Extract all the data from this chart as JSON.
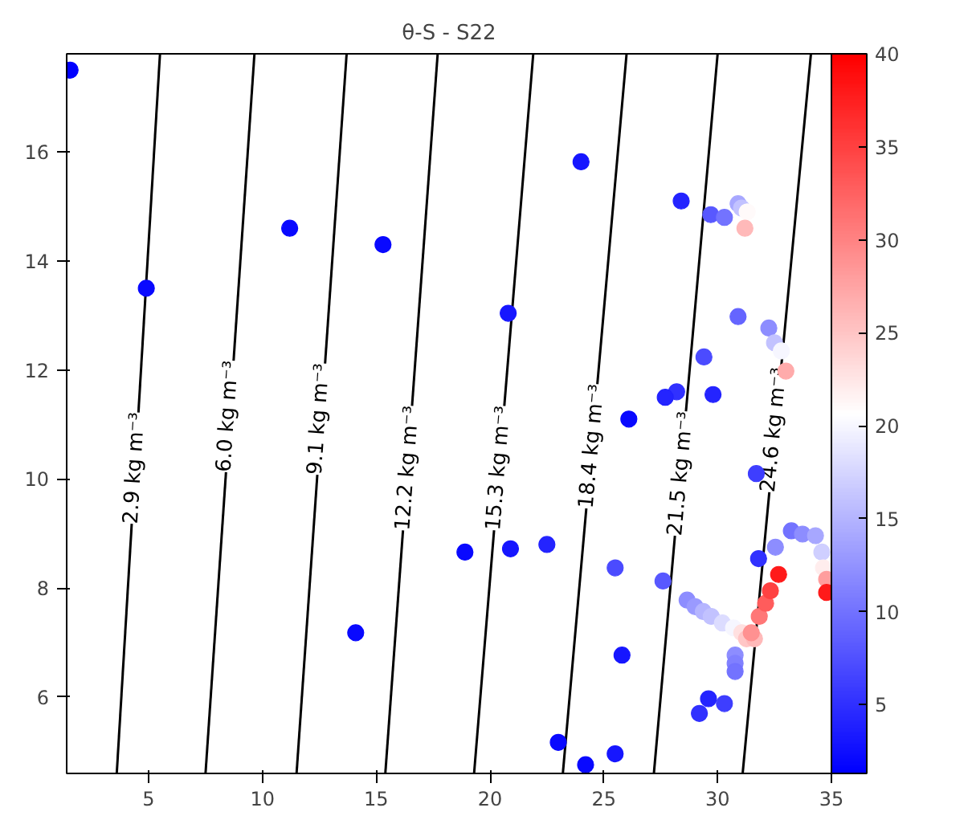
{
  "chart_data": {
    "type": "scatter",
    "title": "θ-S - S22",
    "xlim": [
      1.4,
      35
    ],
    "ylim": [
      4.6,
      17.8
    ],
    "xticks": [
      5,
      10,
      15,
      20,
      25,
      30,
      35
    ],
    "yticks": [
      6,
      8,
      10,
      12,
      14,
      16
    ],
    "clim": [
      1.3,
      40
    ],
    "cticks": [
      5,
      10,
      15,
      20,
      25,
      30,
      35,
      40
    ],
    "grid": false,
    "series": [
      {
        "type": "line",
        "marker": "none",
        "color": "#000000",
        "x": [
          3.6,
          5.5
        ],
        "values": [
          4.6,
          17.8
        ]
      },
      {
        "type": "line",
        "marker": "none",
        "color": "#000000",
        "x": [
          7.5,
          9.65
        ],
        "values": [
          4.6,
          17.8
        ]
      },
      {
        "type": "line",
        "marker": "none",
        "color": "#000000",
        "x": [
          11.5,
          13.7
        ],
        "values": [
          4.6,
          17.8
        ]
      },
      {
        "type": "line",
        "marker": "none",
        "color": "#000000",
        "x": [
          15.4,
          17.7
        ],
        "values": [
          4.6,
          17.8
        ]
      },
      {
        "type": "line",
        "marker": "none",
        "color": "#000000",
        "x": [
          19.3,
          21.9
        ],
        "values": [
          4.6,
          17.8
        ]
      },
      {
        "type": "line",
        "marker": "none",
        "color": "#000000",
        "x": [
          23.2,
          26.0
        ],
        "values": [
          4.6,
          17.8
        ]
      },
      {
        "type": "line",
        "marker": "none",
        "color": "#000000",
        "x": [
          27.2,
          30.0
        ],
        "values": [
          4.6,
          17.8
        ]
      },
      {
        "type": "line",
        "marker": "none",
        "color": "#000000",
        "x": [
          31.1,
          34.1
        ],
        "values": [
          4.6,
          17.8
        ]
      },
      {
        "marker": "circle",
        "x": [
          1.55,
          4.9,
          11.2,
          15.3,
          20.8,
          24.0,
          28.4,
          29.7,
          30.3,
          30.9,
          31.05,
          31.3,
          31.2,
          30.9,
          32.25,
          32.5,
          32.8,
          33.0,
          29.4,
          28.2,
          27.7,
          29.8,
          26.1,
          31.7,
          18.9,
          20.9,
          22.5,
          25.5,
          27.6,
          31.8,
          25.8,
          23.0,
          24.2,
          25.5,
          29.6,
          29.2,
          30.3,
          14.1,
          28.66,
          29.01,
          29.37,
          29.72,
          30.21,
          30.7,
          31.06,
          31.27,
          31.62,
          30.77,
          30.77,
          30.77,
          31.48,
          31.83,
          32.11,
          32.32,
          32.68,
          32.54,
          33.24,
          33.73,
          34.3,
          34.58,
          34.65,
          34.79,
          34.79
        ],
        "values": [
          17.5,
          13.5,
          14.6,
          14.3,
          13.04,
          15.82,
          15.1,
          14.85,
          14.8,
          15.05,
          14.97,
          14.9,
          14.6,
          12.98,
          12.77,
          12.5,
          12.35,
          11.98,
          12.24,
          11.6,
          11.5,
          11.55,
          11.1,
          10.1,
          8.66,
          8.72,
          8.8,
          8.37,
          8.13,
          8.54,
          6.77,
          5.17,
          4.76,
          4.96,
          5.97,
          5.7,
          5.88,
          7.18,
          7.78,
          7.66,
          7.57,
          7.48,
          7.36,
          7.27,
          7.18,
          7.07,
          7.07,
          6.77,
          6.62,
          6.47,
          7.18,
          7.48,
          7.72,
          7.95,
          8.25,
          8.75,
          9.05,
          8.99,
          8.96,
          8.66,
          8.37,
          8.16,
          7.92
        ],
        "colors": [
          "#0000ff",
          "#0909ff",
          "#0909ff",
          "#0909ff",
          "#1616ff",
          "#1616ff",
          "#2424ff",
          "#5858ff",
          "#7373ff",
          "#a7a7ff",
          "#c2c2ff",
          "#fffafa",
          "#ffb9b9",
          "#6565ff",
          "#8d8dff",
          "#c2c2ff",
          "#f6f6ff",
          "#ffabab",
          "#4b4bff",
          "#3131ff",
          "#2424ff",
          "#2424ff",
          "#0909ff",
          "#3e3eff",
          "#0909ff",
          "#1616ff",
          "#2424ff",
          "#4b4bff",
          "#5858ff",
          "#3131ff",
          "#1616ff",
          "#0909ff",
          "#0909ff",
          "#1616ff",
          "#2424ff",
          "#3131ff",
          "#3e3eff",
          "#0909ff",
          "#8d8dff",
          "#9a9aff",
          "#b5b5ff",
          "#c2c2ff",
          "#dcdcff",
          "#f6f6ff",
          "#ffe0e0",
          "#ffc6c6",
          "#ffb9b9",
          "#8d8dff",
          "#8080ff",
          "#7373ff",
          "#ff9191",
          "#ff7777",
          "#ff5c5c",
          "#ff4242",
          "#ff1a1a",
          "#8d8dff",
          "#7373ff",
          "#8d8dff",
          "#a7a7ff",
          "#cfcfff",
          "#ffeded",
          "#ff9e9e",
          "#ff1a1a"
        ],
        "cvalues": [
          1.3,
          2,
          2,
          2,
          3,
          3,
          4,
          8,
          10,
          14,
          16,
          21,
          26,
          9,
          12,
          16,
          20,
          27,
          7,
          5,
          4,
          4,
          2,
          6,
          2,
          3,
          4,
          7,
          8,
          5,
          3,
          2,
          2,
          3,
          4,
          5,
          6,
          2,
          12,
          13,
          15,
          16,
          18,
          20,
          23,
          25,
          26,
          12,
          11,
          10,
          29,
          31,
          33,
          35,
          38,
          12,
          10,
          12,
          14,
          17,
          22,
          28,
          38
        ]
      }
    ],
    "annotations": [
      {
        "text": "2.9 kg m⁻³",
        "x": 4.4,
        "y": 10.2
      },
      {
        "text": "6.0 kg m⁻³",
        "x": 8.5,
        "y": 11.15
      },
      {
        "text": "9.1 kg m⁻³",
        "x": 12.5,
        "y": 11.1
      },
      {
        "text": "12.2 kg m⁻³",
        "x": 16.4,
        "y": 10.2
      },
      {
        "text": "15.3 kg m⁻³",
        "x": 20.4,
        "y": 10.2
      },
      {
        "text": "18.4 kg m⁻³",
        "x": 24.5,
        "y": 10.6
      },
      {
        "text": "21.5 kg m⁻³",
        "x": 28.4,
        "y": 10.1
      },
      {
        "text": "24.6 kg m⁻³",
        "x": 32.5,
        "y": 10.9
      }
    ]
  }
}
